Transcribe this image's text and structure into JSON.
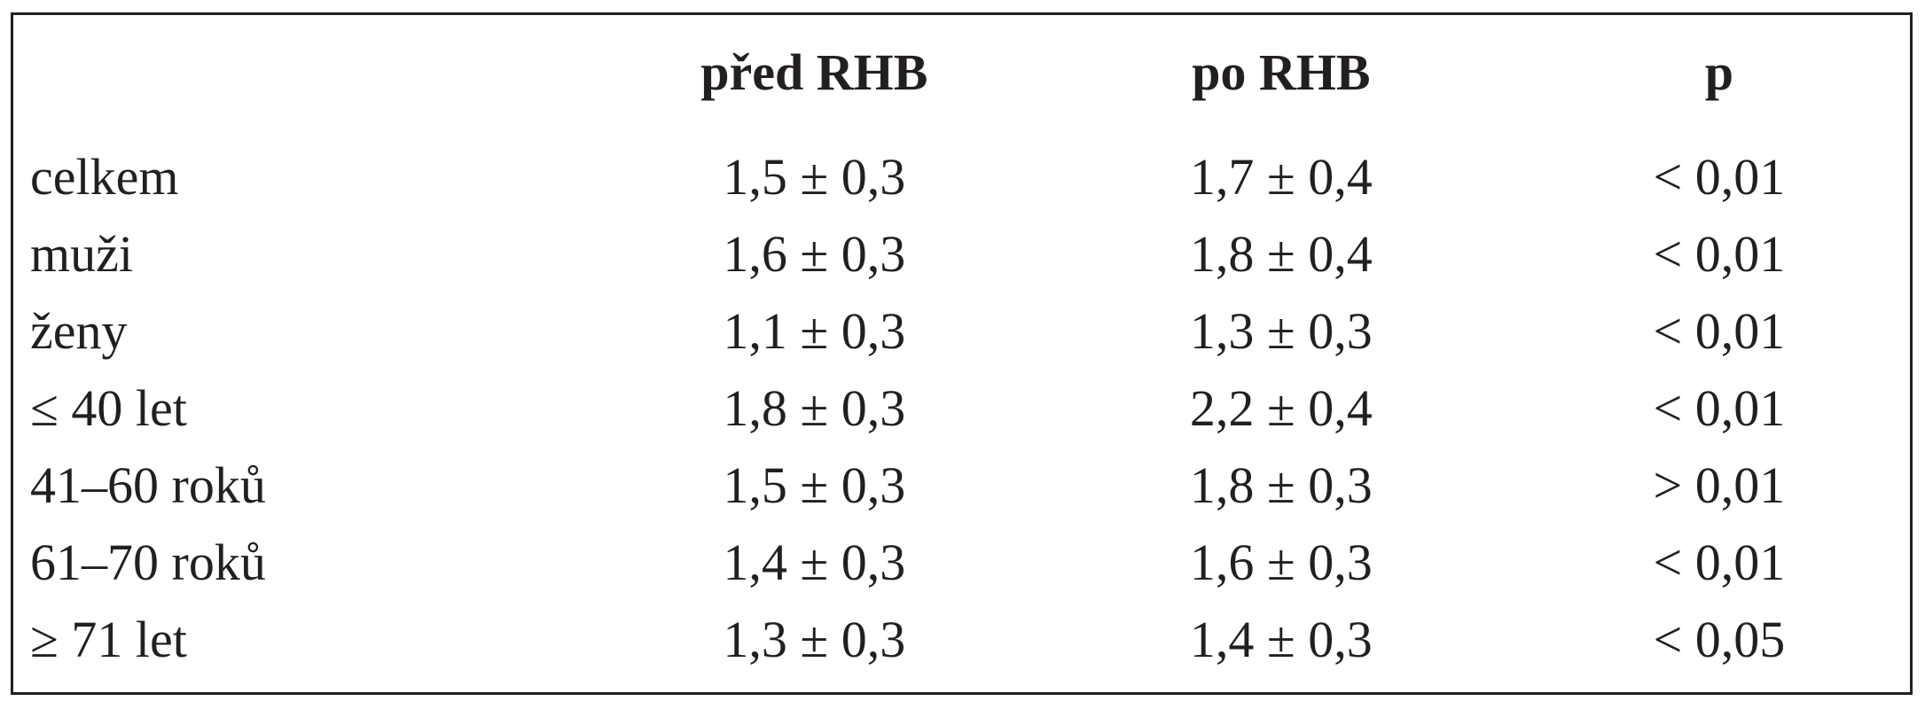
{
  "table": {
    "headers": [
      "",
      "před RHB",
      "po RHB",
      "p"
    ],
    "rows": [
      [
        "celkem",
        "1,5 ± 0,3",
        "1,7 ± 0,4",
        "< 0,01"
      ],
      [
        "muži",
        "1,6 ± 0,3",
        "1,8 ± 0,4",
        "< 0,01"
      ],
      [
        "ženy",
        "1,1 ± 0,3",
        "1,3 ± 0,3",
        "< 0,01"
      ],
      [
        "≤ 40 let",
        "1,8 ± 0,3",
        "2,2 ± 0,4",
        "< 0,01"
      ],
      [
        "41–60 roků",
        "1,5 ± 0,3",
        "1,8 ± 0,3",
        "> 0,01"
      ],
      [
        "61–70 roků",
        "1,4 ± 0,3",
        "1,6 ± 0,3",
        "< 0,01"
      ],
      [
        "≥ 71 let",
        "1,3 ± 0,3",
        "1,4 ± 0,3",
        "< 0,05"
      ]
    ]
  }
}
